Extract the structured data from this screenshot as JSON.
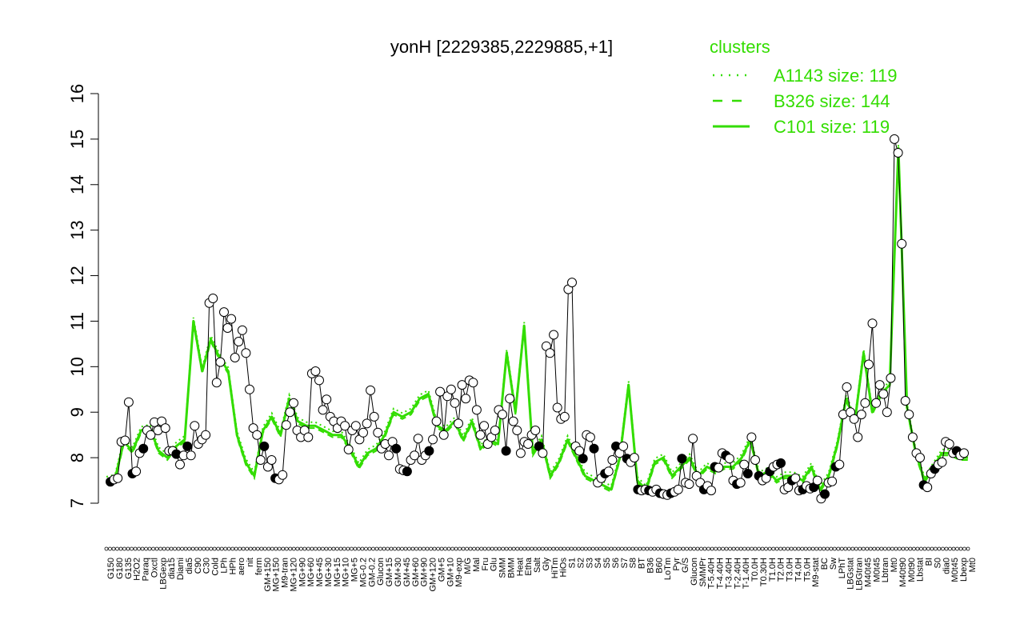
{
  "chart_data": {
    "type": "line",
    "title": "yonH [2229385,2229885,+1]",
    "xlabel": "",
    "ylabel": "",
    "ylim": [
      7,
      16
    ],
    "yticks": [
      7,
      8,
      9,
      10,
      11,
      12,
      13,
      14,
      15,
      16
    ],
    "grid": false,
    "legend_position": "top-right",
    "legend": {
      "title": "clusters",
      "color": "#33dd00",
      "entries": [
        {
          "label": "A1143 size: 119",
          "style": "dotted"
        },
        {
          "label": "B326 size: 144",
          "style": "dashed"
        },
        {
          "label": "C101 size: 119",
          "style": "solid"
        }
      ]
    },
    "x_labels": [
      "G150",
      "G180",
      "G135",
      "H2O2",
      "Paraq",
      "Oxctl",
      "LBGexp",
      "dia15",
      "Diami",
      "dia5",
      "C90",
      "C30",
      "Cold",
      "LPh",
      "HPh",
      "aero",
      "nit",
      "ferm",
      "GM+150",
      "MG+150",
      "M9-tran",
      "MG+120",
      "MG+90",
      "MG+60",
      "MG+45",
      "MG+30",
      "MG+15",
      "MG+10",
      "MG+5",
      "MG-0.2",
      "GM-0.2",
      "Glucon",
      "GM+15",
      "GM+30",
      "GM+45",
      "GM+60",
      "GM+90",
      "GM+120",
      "GM+5",
      "GM+10",
      "M9-exp",
      "M/G",
      "Mal",
      "Fru",
      "Glu",
      "SMM",
      "BMM",
      "Heat",
      "Etha",
      "Salt",
      "Gly",
      "HiTm",
      "HiOs",
      "S1",
      "S2",
      "S3",
      "S4",
      "S5",
      "S6",
      "S7",
      "S8",
      "BT",
      "B36",
      "B60",
      "LoTm",
      "Pyr",
      "G/S",
      "Glucon",
      "SMMPr",
      "T-5.40H",
      "T-4.40H",
      "T-3.40H",
      "T-2.40H",
      "T-1.40H",
      "T0.0H",
      "T0.30H",
      "T1.0H",
      "T2.0H",
      "T3.0H",
      "T4.0H",
      "T5.0H",
      "M9-stat",
      "BC",
      "Sw",
      "LPhT",
      "LBGstat",
      "LBGtran",
      "M40t45",
      "M0t45",
      "Lbtran",
      "Mt0",
      "M40t90",
      "M0t90",
      "Lbstat",
      "BI",
      "S0",
      "dia0",
      "M0t45",
      "Lbexp",
      "Mt0"
    ],
    "series": [
      {
        "color": "#33dd00",
        "values": [
          7.5,
          7.55,
          8.35,
          8.15,
          8.6,
          8.65,
          8.15,
          8.0,
          8.25,
          8.4,
          11.0,
          9.9,
          10.6,
          10.2,
          9.9,
          8.5,
          7.9,
          7.6,
          8.6,
          8.9,
          8.5,
          9.3,
          8.8,
          8.7,
          8.7,
          8.6,
          8.5,
          8.5,
          8.2,
          7.8,
          8.1,
          8.2,
          8.5,
          9.0,
          8.9,
          9.0,
          9.3,
          9.4,
          8.7,
          8.6,
          8.8,
          8.4,
          8.8,
          8.2,
          8.4,
          8.3,
          10.3,
          9.0,
          10.9,
          8.1,
          8.4,
          7.6,
          7.9,
          8.4,
          8.0,
          7.6,
          7.5,
          7.4,
          7.3,
          8.0,
          9.6,
          7.5,
          7.3,
          7.9,
          8.0,
          7.6,
          7.8,
          8.0,
          7.6,
          7.8,
          7.7,
          7.8,
          7.8,
          8.0,
          8.4,
          7.6,
          7.7,
          7.5,
          7.6,
          7.6,
          7.5,
          7.8,
          7.3,
          7.6,
          8.3,
          9.3,
          8.8,
          10.3,
          9.0,
          9.4,
          9.6,
          14.8,
          9.1,
          8.1,
          7.5,
          7.8,
          8.1,
          8.1,
          8.0,
          8.0
        ]
      }
    ],
    "points": [
      {
        "x": 0,
        "y": 7.47
      },
      {
        "x": 1,
        "y": 7.52
      },
      {
        "x": 2,
        "y": 7.55
      },
      {
        "x": 3,
        "y": 8.35
      },
      {
        "x": 4,
        "y": 8.38
      },
      {
        "x": 5,
        "y": 9.22
      },
      {
        "x": 6,
        "y": 7.65
      },
      {
        "x": 7,
        "y": 7.7
      },
      {
        "x": 8,
        "y": 8.1
      },
      {
        "x": 9,
        "y": 8.2
      },
      {
        "x": 10,
        "y": 8.6
      },
      {
        "x": 11,
        "y": 8.5
      },
      {
        "x": 12,
        "y": 8.78
      },
      {
        "x": 13,
        "y": 8.6
      },
      {
        "x": 14,
        "y": 8.8
      },
      {
        "x": 15,
        "y": 8.65
      },
      {
        "x": 16,
        "y": 8.15
      },
      {
        "x": 17,
        "y": 8.15
      },
      {
        "x": 18,
        "y": 8.08
      },
      {
        "x": 19,
        "y": 7.85
      },
      {
        "x": 20,
        "y": 8.05
      },
      {
        "x": 21,
        "y": 8.25
      },
      {
        "x": 22,
        "y": 8.05
      },
      {
        "x": 23,
        "y": 8.7
      },
      {
        "x": 24,
        "y": 8.3
      },
      {
        "x": 25,
        "y": 8.4
      },
      {
        "x": 26,
        "y": 8.5
      },
      {
        "x": 27,
        "y": 11.4
      },
      {
        "x": 28,
        "y": 11.5
      },
      {
        "x": 29,
        "y": 9.65
      },
      {
        "x": 30,
        "y": 10.1
      },
      {
        "x": 31,
        "y": 11.2
      },
      {
        "x": 32,
        "y": 10.85
      },
      {
        "x": 33,
        "y": 11.05
      },
      {
        "x": 34,
        "y": 10.2
      },
      {
        "x": 35,
        "y": 10.55
      },
      {
        "x": 36,
        "y": 10.8
      },
      {
        "x": 37,
        "y": 10.3
      },
      {
        "x": 38,
        "y": 9.5
      },
      {
        "x": 39,
        "y": 8.65
      },
      {
        "x": 40,
        "y": 8.5
      },
      {
        "x": 41,
        "y": 7.95
      },
      {
        "x": 42,
        "y": 8.25
      },
      {
        "x": 43,
        "y": 7.8
      },
      {
        "x": 44,
        "y": 7.95
      },
      {
        "x": 45,
        "y": 7.55
      },
      {
        "x": 46,
        "y": 7.52
      },
      {
        "x": 47,
        "y": 7.62
      },
      {
        "x": 48,
        "y": 8.72
      },
      {
        "x": 49,
        "y": 9.0
      },
      {
        "x": 50,
        "y": 9.2
      },
      {
        "x": 51,
        "y": 8.6
      },
      {
        "x": 52,
        "y": 8.45
      },
      {
        "x": 53,
        "y": 8.6
      },
      {
        "x": 54,
        "y": 8.45
      },
      {
        "x": 55,
        "y": 9.85
      },
      {
        "x": 56,
        "y": 9.9
      },
      {
        "x": 57,
        "y": 9.7
      },
      {
        "x": 58,
        "y": 9.05
      },
      {
        "x": 59,
        "y": 9.28
      },
      {
        "x": 60,
        "y": 8.9
      },
      {
        "x": 61,
        "y": 8.8
      },
      {
        "x": 62,
        "y": 8.65
      },
      {
        "x": 63,
        "y": 8.8
      },
      {
        "x": 64,
        "y": 8.7
      },
      {
        "x": 65,
        "y": 8.18
      },
      {
        "x": 66,
        "y": 8.6
      },
      {
        "x": 67,
        "y": 8.7
      },
      {
        "x": 68,
        "y": 8.4
      },
      {
        "x": 69,
        "y": 8.55
      },
      {
        "x": 70,
        "y": 8.75
      },
      {
        "x": 71,
        "y": 9.48
      },
      {
        "x": 72,
        "y": 8.9
      },
      {
        "x": 73,
        "y": 8.55
      },
      {
        "x": 74,
        "y": 8.2
      },
      {
        "x": 75,
        "y": 8.3
      },
      {
        "x": 76,
        "y": 8.05
      },
      {
        "x": 77,
        "y": 8.35
      },
      {
        "x": 78,
        "y": 8.2
      },
      {
        "x": 79,
        "y": 7.75
      },
      {
        "x": 80,
        "y": 7.72
      },
      {
        "x": 81,
        "y": 7.7
      },
      {
        "x": 82,
        "y": 7.95
      },
      {
        "x": 83,
        "y": 8.05
      },
      {
        "x": 84,
        "y": 8.42
      },
      {
        "x": 85,
        "y": 7.95
      },
      {
        "x": 86,
        "y": 8.05
      },
      {
        "x": 87,
        "y": 8.15
      },
      {
        "x": 88,
        "y": 8.4
      },
      {
        "x": 89,
        "y": 8.8
      },
      {
        "x": 90,
        "y": 9.45
      },
      {
        "x": 91,
        "y": 8.5
      },
      {
        "x": 92,
        "y": 9.35
      },
      {
        "x": 93,
        "y": 9.5
      },
      {
        "x": 94,
        "y": 9.2
      },
      {
        "x": 95,
        "y": 8.75
      },
      {
        "x": 96,
        "y": 9.6
      },
      {
        "x": 97,
        "y": 9.3
      },
      {
        "x": 98,
        "y": 9.7
      },
      {
        "x": 99,
        "y": 9.65
      },
      {
        "x": 100,
        "y": 9.05
      },
      {
        "x": 101,
        "y": 8.5
      },
      {
        "x": 102,
        "y": 8.7
      },
      {
        "x": 103,
        "y": 8.3
      },
      {
        "x": 104,
        "y": 8.45
      },
      {
        "x": 105,
        "y": 8.6
      },
      {
        "x": 106,
        "y": 9.05
      },
      {
        "x": 107,
        "y": 8.95
      },
      {
        "x": 108,
        "y": 8.15
      },
      {
        "x": 109,
        "y": 9.3
      },
      {
        "x": 110,
        "y": 8.8
      },
      {
        "x": 111,
        "y": 8.6
      },
      {
        "x": 112,
        "y": 8.1
      },
      {
        "x": 113,
        "y": 8.35
      },
      {
        "x": 114,
        "y": 8.3
      },
      {
        "x": 115,
        "y": 8.5
      },
      {
        "x": 116,
        "y": 8.6
      },
      {
        "x": 117,
        "y": 8.25
      },
      {
        "x": 118,
        "y": 8.1
      },
      {
        "x": 119,
        "y": 10.45
      },
      {
        "x": 120,
        "y": 10.3
      },
      {
        "x": 121,
        "y": 10.7
      },
      {
        "x": 122,
        "y": 9.1
      },
      {
        "x": 123,
        "y": 8.85
      },
      {
        "x": 124,
        "y": 8.9
      },
      {
        "x": 125,
        "y": 11.7
      },
      {
        "x": 126,
        "y": 11.85
      },
      {
        "x": 127,
        "y": 8.25
      },
      {
        "x": 128,
        "y": 8.15
      },
      {
        "x": 129,
        "y": 7.98
      },
      {
        "x": 130,
        "y": 8.5
      },
      {
        "x": 131,
        "y": 8.45
      },
      {
        "x": 132,
        "y": 8.2
      },
      {
        "x": 133,
        "y": 7.45
      },
      {
        "x": 134,
        "y": 7.55
      },
      {
        "x": 135,
        "y": 7.65
      },
      {
        "x": 136,
        "y": 7.7
      },
      {
        "x": 137,
        "y": 7.95
      },
      {
        "x": 138,
        "y": 8.25
      },
      {
        "x": 139,
        "y": 8.1
      },
      {
        "x": 140,
        "y": 8.25
      },
      {
        "x": 141,
        "y": 7.98
      },
      {
        "x": 142,
        "y": 7.9
      },
      {
        "x": 143,
        "y": 8.0
      },
      {
        "x": 144,
        "y": 7.3
      },
      {
        "x": 145,
        "y": 7.28
      },
      {
        "x": 146,
        "y": 7.3
      },
      {
        "x": 147,
        "y": 7.28
      },
      {
        "x": 148,
        "y": 7.25
      },
      {
        "x": 149,
        "y": 7.3
      },
      {
        "x": 150,
        "y": 7.22
      },
      {
        "x": 151,
        "y": 7.2
      },
      {
        "x": 152,
        "y": 7.18
      },
      {
        "x": 153,
        "y": 7.22
      },
      {
        "x": 154,
        "y": 7.25
      },
      {
        "x": 155,
        "y": 7.3
      },
      {
        "x": 156,
        "y": 7.98
      },
      {
        "x": 157,
        "y": 7.45
      },
      {
        "x": 158,
        "y": 7.42
      },
      {
        "x": 159,
        "y": 8.42
      },
      {
        "x": 160,
        "y": 7.6
      },
      {
        "x": 161,
        "y": 7.45
      },
      {
        "x": 162,
        "y": 7.3
      },
      {
        "x": 163,
        "y": 7.38
      },
      {
        "x": 164,
        "y": 7.28
      },
      {
        "x": 165,
        "y": 7.8
      },
      {
        "x": 166,
        "y": 7.78
      },
      {
        "x": 167,
        "y": 8.1
      },
      {
        "x": 168,
        "y": 8.05
      },
      {
        "x": 169,
        "y": 7.98
      },
      {
        "x": 170,
        "y": 7.5
      },
      {
        "x": 171,
        "y": 7.42
      },
      {
        "x": 172,
        "y": 7.45
      },
      {
        "x": 173,
        "y": 7.85
      },
      {
        "x": 174,
        "y": 7.65
      },
      {
        "x": 175,
        "y": 8.45
      },
      {
        "x": 176,
        "y": 7.95
      },
      {
        "x": 177,
        "y": 7.6
      },
      {
        "x": 178,
        "y": 7.5
      },
      {
        "x": 179,
        "y": 7.55
      },
      {
        "x": 180,
        "y": 7.7
      },
      {
        "x": 181,
        "y": 7.8
      },
      {
        "x": 182,
        "y": 7.85
      },
      {
        "x": 183,
        "y": 7.88
      },
      {
        "x": 184,
        "y": 7.3
      },
      {
        "x": 185,
        "y": 7.35
      },
      {
        "x": 186,
        "y": 7.5
      },
      {
        "x": 187,
        "y": 7.55
      },
      {
        "x": 188,
        "y": 7.28
      },
      {
        "x": 189,
        "y": 7.3
      },
      {
        "x": 190,
        "y": 7.38
      },
      {
        "x": 191,
        "y": 7.32
      },
      {
        "x": 192,
        "y": 7.35
      },
      {
        "x": 193,
        "y": 7.5
      },
      {
        "x": 194,
        "y": 7.1
      },
      {
        "x": 195,
        "y": 7.2
      },
      {
        "x": 196,
        "y": 7.45
      },
      {
        "x": 197,
        "y": 7.48
      },
      {
        "x": 198,
        "y": 7.8
      },
      {
        "x": 199,
        "y": 7.85
      },
      {
        "x": 200,
        "y": 8.95
      },
      {
        "x": 201,
        "y": 9.55
      },
      {
        "x": 202,
        "y": 9.0
      },
      {
        "x": 203,
        "y": 8.85
      },
      {
        "x": 204,
        "y": 8.45
      },
      {
        "x": 205,
        "y": 8.95
      },
      {
        "x": 206,
        "y": 9.2
      },
      {
        "x": 207,
        "y": 10.05
      },
      {
        "x": 208,
        "y": 10.95
      },
      {
        "x": 209,
        "y": 9.2
      },
      {
        "x": 210,
        "y": 9.6
      },
      {
        "x": 211,
        "y": 9.4
      },
      {
        "x": 212,
        "y": 9.0
      },
      {
        "x": 213,
        "y": 9.75
      },
      {
        "x": 214,
        "y": 15.0
      },
      {
        "x": 215,
        "y": 14.7
      },
      {
        "x": 216,
        "y": 12.7
      },
      {
        "x": 217,
        "y": 9.25
      },
      {
        "x": 218,
        "y": 8.95
      },
      {
        "x": 219,
        "y": 8.45
      },
      {
        "x": 220,
        "y": 8.1
      },
      {
        "x": 221,
        "y": 8.0
      },
      {
        "x": 222,
        "y": 7.4
      },
      {
        "x": 223,
        "y": 7.35
      },
      {
        "x": 224,
        "y": 7.65
      },
      {
        "x": 225,
        "y": 7.75
      },
      {
        "x": 226,
        "y": 7.85
      },
      {
        "x": 227,
        "y": 7.9
      },
      {
        "x": 228,
        "y": 8.35
      },
      {
        "x": 229,
        "y": 8.3
      },
      {
        "x": 230,
        "y": 8.1
      },
      {
        "x": 231,
        "y": 8.15
      },
      {
        "x": 232,
        "y": 8.05
      },
      {
        "x": 233,
        "y": 8.1
      }
    ]
  }
}
